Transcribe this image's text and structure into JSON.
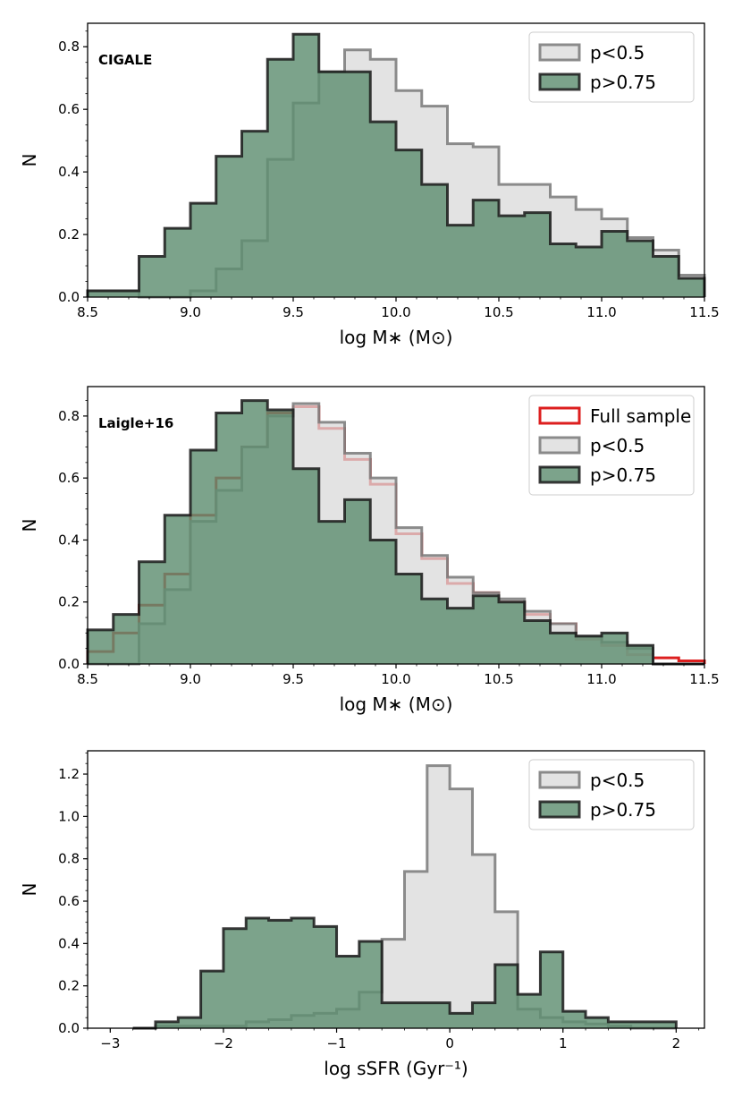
{
  "colors": {
    "low_fill": "#d9d9d9",
    "low_edge": "#7f7f7f",
    "high_fill": "#5f8f72",
    "high_edge": "#1a1a1a",
    "full_edge": "#dd1f1f"
  },
  "chart_data": [
    {
      "type": "bar",
      "subtype": "step-histogram",
      "annotation": "CIGALE",
      "xlabel": "log M∗ (M⊙)",
      "ylabel": "N",
      "xlim": [
        8.5,
        11.5
      ],
      "ylim": [
        0,
        0.875
      ],
      "xticks": [
        8.5,
        9.0,
        9.5,
        10.0,
        10.5,
        11.0,
        11.5
      ],
      "xtick_labels": [
        "8.5",
        "9.0",
        "9.5",
        "10.0",
        "10.5",
        "11.0",
        "11.5"
      ],
      "yticks": [
        0.0,
        0.2,
        0.4,
        0.6,
        0.8
      ],
      "ytick_labels": [
        "0.0",
        "0.2",
        "0.4",
        "0.6",
        "0.8"
      ],
      "legend_position": "top-right",
      "bin_edges": [
        8.5,
        8.75,
        8.875,
        9.0,
        9.125,
        9.25,
        9.375,
        9.5,
        9.625,
        9.75,
        9.875,
        10.0,
        10.125,
        10.25,
        10.375,
        10.5,
        10.625,
        10.75,
        10.875,
        11.0,
        11.125,
        11.25,
        11.375,
        11.5
      ],
      "series": [
        {
          "name": "p<0.5",
          "style": "low",
          "values": [
            0.02,
            0.0,
            0.0,
            0.02,
            0.09,
            0.18,
            0.44,
            0.62,
            0.72,
            0.79,
            0.76,
            0.66,
            0.61,
            0.49,
            0.48,
            0.36,
            0.36,
            0.32,
            0.28,
            0.25,
            0.19,
            0.15,
            0.07
          ]
        },
        {
          "name": "p>0.75",
          "style": "high",
          "values": [
            0.02,
            0.13,
            0.22,
            0.3,
            0.45,
            0.53,
            0.76,
            0.84,
            0.72,
            0.72,
            0.56,
            0.47,
            0.36,
            0.23,
            0.31,
            0.26,
            0.27,
            0.17,
            0.16,
            0.21,
            0.18,
            0.13,
            0.06
          ]
        }
      ]
    },
    {
      "type": "bar",
      "subtype": "step-histogram",
      "annotation": "Laigle+16",
      "xlabel": "log M∗ (M⊙)",
      "ylabel": "N",
      "xlim": [
        8.5,
        11.5
      ],
      "ylim": [
        0,
        0.895
      ],
      "xticks": [
        8.5,
        9.0,
        9.5,
        10.0,
        10.5,
        11.0,
        11.5
      ],
      "xtick_labels": [
        "8.5",
        "9.0",
        "9.5",
        "10.0",
        "10.5",
        "11.0",
        "11.5"
      ],
      "yticks": [
        0.0,
        0.2,
        0.4,
        0.6,
        0.8
      ],
      "ytick_labels": [
        "0.0",
        "0.2",
        "0.4",
        "0.6",
        "0.8"
      ],
      "legend_position": "top-right",
      "bin_edges": [
        8.5,
        8.625,
        8.75,
        8.875,
        9.0,
        9.125,
        9.25,
        9.375,
        9.5,
        9.625,
        9.75,
        9.875,
        10.0,
        10.125,
        10.25,
        10.375,
        10.5,
        10.625,
        10.75,
        10.875,
        11.0,
        11.125,
        11.25,
        11.375,
        11.5
      ],
      "series": [
        {
          "name": "Full sample",
          "style": "full",
          "values": [
            0.04,
            0.1,
            0.19,
            0.29,
            0.48,
            0.6,
            0.7,
            0.81,
            0.83,
            0.76,
            0.66,
            0.58,
            0.42,
            0.34,
            0.26,
            0.23,
            0.2,
            0.16,
            0.13,
            0.08,
            0.06,
            0.03,
            0.02,
            0.01
          ]
        },
        {
          "name": "p<0.5",
          "style": "low",
          "values": [
            0.0,
            0.0,
            0.13,
            0.24,
            0.46,
            0.56,
            0.7,
            0.8,
            0.84,
            0.78,
            0.68,
            0.6,
            0.44,
            0.35,
            0.28,
            0.23,
            0.21,
            0.17,
            0.13,
            0.09,
            0.07,
            0.05,
            0.0,
            0.0
          ]
        },
        {
          "name": "p>0.75",
          "style": "high",
          "values": [
            0.11,
            0.16,
            0.33,
            0.48,
            0.69,
            0.81,
            0.85,
            0.82,
            0.63,
            0.46,
            0.53,
            0.4,
            0.29,
            0.21,
            0.18,
            0.22,
            0.2,
            0.14,
            0.1,
            0.09,
            0.1,
            0.06,
            0.0,
            0.0
          ]
        }
      ]
    },
    {
      "type": "bar",
      "subtype": "step-histogram",
      "annotation": "",
      "xlabel": "log sSFR (Gyr⁻¹)",
      "ylabel": "N",
      "xlim": [
        -3.2,
        2.25
      ],
      "ylim": [
        0,
        1.31
      ],
      "xticks": [
        -3,
        -2,
        -1,
        0,
        1,
        2
      ],
      "xtick_labels": [
        "−3",
        "−2",
        "−1",
        "0",
        "1",
        "2"
      ],
      "yticks": [
        0.0,
        0.2,
        0.4,
        0.6,
        0.8,
        1.0,
        1.2
      ],
      "ytick_labels": [
        "0.0",
        "0.2",
        "0.4",
        "0.6",
        "0.8",
        "1.0",
        "1.2"
      ],
      "legend_position": "top-right",
      "bin_edges": [
        -2.8,
        -2.6,
        -2.4,
        -2.2,
        -2.0,
        -1.8,
        -1.6,
        -1.4,
        -1.2,
        -1.0,
        -0.8,
        -0.6,
        -0.4,
        -0.2,
        0.0,
        0.2,
        0.4,
        0.6,
        0.8,
        1.0,
        1.2,
        1.4,
        1.6,
        1.8,
        2.0
      ],
      "series": [
        {
          "name": "p<0.5",
          "style": "low",
          "values": [
            0.0,
            0.01,
            0.01,
            0.01,
            0.01,
            0.03,
            0.04,
            0.06,
            0.07,
            0.09,
            0.17,
            0.42,
            0.74,
            1.24,
            1.13,
            0.82,
            0.55,
            0.09,
            0.05,
            0.03,
            0.02,
            0.01,
            0.0,
            0.0
          ]
        },
        {
          "name": "p>0.75",
          "style": "high",
          "values": [
            0.0,
            0.03,
            0.05,
            0.27,
            0.47,
            0.52,
            0.51,
            0.52,
            0.48,
            0.34,
            0.41,
            0.12,
            0.12,
            0.12,
            0.07,
            0.12,
            0.3,
            0.16,
            0.36,
            0.08,
            0.05,
            0.03,
            0.03,
            0.03
          ]
        }
      ]
    }
  ]
}
